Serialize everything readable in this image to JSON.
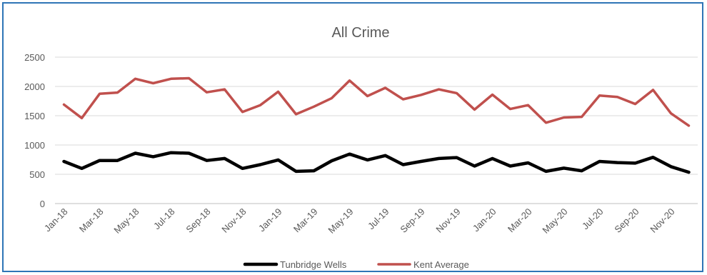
{
  "chart_data": {
    "type": "line",
    "title": "All Crime",
    "xlabel": "",
    "ylabel": "",
    "ylim": [
      0,
      2500
    ],
    "yticks": [
      0,
      500,
      1000,
      1500,
      2000,
      2500
    ],
    "grid": true,
    "legend_position": "bottom",
    "x": [
      "Jan-18",
      "Feb-18",
      "Mar-18",
      "Apr-18",
      "May-18",
      "Jun-18",
      "Jul-18",
      "Aug-18",
      "Sep-18",
      "Oct-18",
      "Nov-18",
      "Dec-18",
      "Jan-19",
      "Feb-19",
      "Mar-19",
      "Apr-19",
      "May-19",
      "Jun-19",
      "Jul-19",
      "Aug-19",
      "Sep-19",
      "Oct-19",
      "Nov-19",
      "Dec-19",
      "Jan-20",
      "Feb-20",
      "Mar-20",
      "Apr-20",
      "May-20",
      "Jun-20",
      "Jul-20",
      "Aug-20",
      "Sep-20",
      "Oct-20",
      "Nov-20",
      "Dec-20"
    ],
    "x_tick_labels": [
      "Jan-18",
      "Mar-18",
      "May-18",
      "Jul-18",
      "Sep-18",
      "Nov-18",
      "Jan-19",
      "Mar-19",
      "May-19",
      "Jul-19",
      "Sep-19",
      "Nov-19",
      "Jan-20",
      "Mar-20",
      "May-20",
      "Jul-20",
      "Sep-20",
      "Nov-20"
    ],
    "series": [
      {
        "name": "Tunbridge Wells",
        "color": "#000000",
        "values": [
          720,
          600,
          735,
          735,
          860,
          800,
          870,
          860,
          735,
          770,
          600,
          665,
          745,
          550,
          560,
          730,
          845,
          745,
          820,
          665,
          720,
          770,
          785,
          640,
          770,
          640,
          695,
          550,
          605,
          560,
          720,
          700,
          690,
          790,
          630,
          535
        ]
      },
      {
        "name": "Kent Average",
        "color": "#c0504d",
        "values": [
          1690,
          1460,
          1875,
          1895,
          2130,
          2055,
          2130,
          2140,
          1900,
          1950,
          1565,
          1680,
          1910,
          1525,
          1655,
          1800,
          2100,
          1835,
          1975,
          1780,
          1855,
          1950,
          1885,
          1605,
          1860,
          1615,
          1680,
          1380,
          1470,
          1480,
          1845,
          1820,
          1700,
          1940,
          1540,
          1330
        ]
      }
    ]
  }
}
